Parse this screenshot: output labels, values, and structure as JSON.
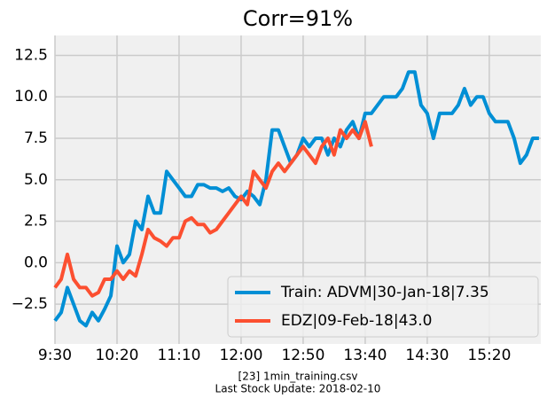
{
  "chart_data": {
    "type": "line",
    "title": "Corr=91%",
    "footer": [
      "[23] 1min_training.csv",
      "Last Stock Update: 2018-02-10"
    ],
    "categories": [
      "9:30",
      null,
      null,
      null,
      null,
      null,
      null,
      null,
      null,
      null,
      "10:20",
      null,
      null,
      null,
      null,
      null,
      null,
      null,
      null,
      null,
      "11:10",
      null,
      null,
      null,
      null,
      null,
      null,
      null,
      null,
      null,
      "12:00",
      null,
      null,
      null,
      null,
      null,
      null,
      null,
      null,
      null,
      "12:50",
      null,
      null,
      null,
      null,
      null,
      null,
      null,
      null,
      null,
      "13:40",
      null,
      null,
      null,
      null,
      null,
      null,
      null,
      null,
      null,
      "14:30",
      null,
      null,
      null,
      null,
      null,
      null,
      null,
      null,
      null,
      "15:20",
      null,
      null,
      null,
      null,
      null,
      null,
      null,
      null
    ],
    "xlim": [
      0,
      78.3
    ],
    "ylim": [
      -4.9,
      13.7
    ],
    "yticks": [
      {
        "value": -2.5,
        "label": "−2.5"
      },
      {
        "value": 0,
        "label": "0.0"
      },
      2.5,
      {
        "value": 5,
        "label": "5.0"
      },
      7.5,
      {
        "value": 10,
        "label": "10.0"
      },
      12.5
    ],
    "grid": true,
    "legend": "lower right",
    "series": [
      {
        "name": "Train: ADVM|30-Jan-18|7.35",
        "color": "#008fd5",
        "values": [
          -3.5,
          -3.0,
          -1.5,
          -2.5,
          -3.5,
          -3.8,
          -3.0,
          -3.5,
          -2.8,
          -2.0,
          1.0,
          0.0,
          0.5,
          2.5,
          2.0,
          4.0,
          3.0,
          3.0,
          5.5,
          5.0,
          4.5,
          4.0,
          4.0,
          4.7,
          4.7,
          4.5,
          4.5,
          4.3,
          4.5,
          4.0,
          3.8,
          4.3,
          4.0,
          3.5,
          5.0,
          8.0,
          8.0,
          7.0,
          6.0,
          6.5,
          7.5,
          7.0,
          7.5,
          7.5,
          6.5,
          7.5,
          7.0,
          8.0,
          8.5,
          7.5,
          9.0,
          9.0,
          9.5,
          10.0,
          10.0,
          10.0,
          10.5,
          11.5,
          11.5,
          9.5,
          9.0,
          7.5,
          9.0,
          9.0,
          9.0,
          9.5,
          10.5,
          9.5,
          10.0,
          10.0,
          9.0,
          8.5,
          8.5,
          8.5,
          7.5,
          6.0,
          6.5,
          7.5,
          7.5
        ]
      },
      {
        "name": "EDZ|09-Feb-18|43.0",
        "color": "#fc4f30",
        "values": [
          -1.5,
          -1.0,
          0.5,
          -1.0,
          -1.5,
          -1.5,
          -2.0,
          -1.8,
          -1.0,
          -1.0,
          -0.5,
          -1.0,
          -0.5,
          -0.8,
          0.5,
          2.0,
          1.5,
          1.3,
          1.0,
          1.5,
          1.5,
          2.5,
          2.7,
          2.3,
          2.3,
          1.8,
          2.0,
          2.5,
          3.0,
          3.5,
          4.0,
          3.5,
          5.5,
          5.0,
          4.5,
          5.5,
          6.0,
          5.5,
          6.0,
          6.5,
          7.0,
          6.5,
          6.0,
          7.0,
          7.5,
          6.5,
          8.0,
          7.5,
          8.0,
          7.5,
          8.5,
          7.0,
          null,
          null,
          null,
          null,
          null,
          null,
          null,
          null,
          null,
          null,
          null,
          null,
          null,
          null,
          null,
          null,
          null,
          null,
          null,
          null,
          null,
          null,
          null,
          null,
          null,
          null,
          null
        ]
      }
    ]
  }
}
